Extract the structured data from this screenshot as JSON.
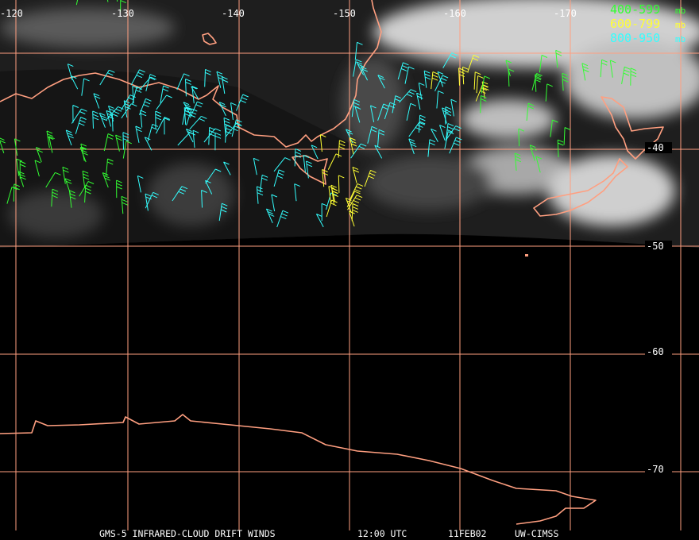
{
  "map": {
    "longitude_labels": [
      "-120",
      "-130",
      "-140",
      "-150",
      "-160",
      "-170"
    ],
    "latitude_labels": [
      "-40",
      "-50",
      "-60",
      "-70"
    ],
    "legend": [
      {
        "range": "400-599",
        "unit": "mb",
        "color": "#33ff33"
      },
      {
        "range": "600-799",
        "unit": "mb",
        "color": "#ffff33"
      },
      {
        "range": "800-950",
        "unit": "mb",
        "color": "#33ffff"
      }
    ],
    "footer": {
      "product": "GMS-5 INFRARED-CLOUD DRIFT WINDS",
      "time": "12:00 UTC",
      "date": "11FEB02",
      "source": "UW-CIMSS"
    }
  }
}
